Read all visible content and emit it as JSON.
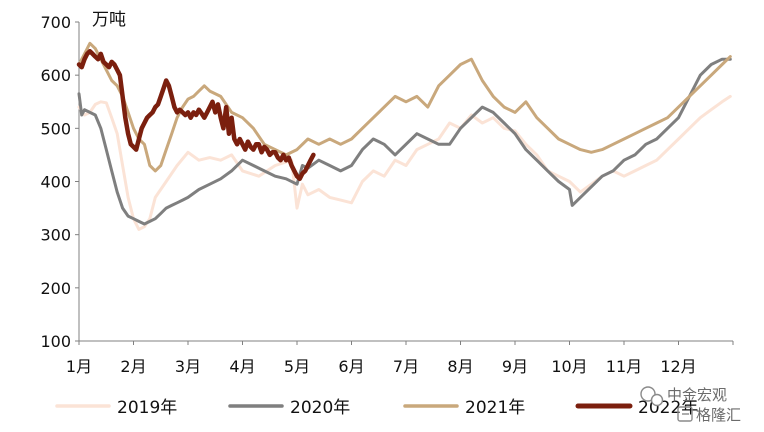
{
  "chart_data": {
    "type": "line",
    "ylabel": "万吨",
    "ylim": [
      100,
      700
    ],
    "yticks": [
      100,
      200,
      300,
      400,
      500,
      600,
      700
    ],
    "xlim": [
      1,
      13
    ],
    "months": [
      "1月",
      "2月",
      "3月",
      "4月",
      "5月",
      "6月",
      "7月",
      "8月",
      "9月",
      "10月",
      "11月",
      "12月"
    ],
    "grid": false,
    "legend_position": "bottom",
    "series": [
      {
        "name": "2019年",
        "color": "#fbe3d6",
        "x": [
          1.0,
          1.1,
          1.2,
          1.3,
          1.4,
          1.5,
          1.6,
          1.7,
          1.8,
          1.9,
          2.0,
          2.1,
          2.2,
          2.3,
          2.4,
          2.6,
          2.8,
          3.0,
          3.2,
          3.4,
          3.6,
          3.8,
          4.0,
          4.3,
          4.6,
          4.9,
          5.0,
          5.1,
          5.2,
          5.4,
          5.6,
          5.8,
          6.0,
          6.2,
          6.4,
          6.6,
          6.8,
          7.0,
          7.2,
          7.4,
          7.6,
          7.8,
          8.0,
          8.2,
          8.4,
          8.6,
          8.8,
          9.0,
          9.2,
          9.4,
          9.6,
          9.8,
          10.0,
          10.2,
          10.4,
          10.6,
          10.8,
          11.0,
          11.2,
          11.4,
          11.6,
          11.8,
          12.0,
          12.2,
          12.4,
          12.6,
          12.8,
          12.95
        ],
        "values": [
          540,
          525,
          530,
          545,
          550,
          548,
          520,
          490,
          430,
          370,
          330,
          310,
          315,
          330,
          370,
          400,
          430,
          455,
          440,
          445,
          440,
          450,
          420,
          410,
          430,
          440,
          350,
          395,
          375,
          385,
          370,
          365,
          360,
          400,
          420,
          410,
          440,
          430,
          460,
          470,
          480,
          510,
          500,
          525,
          510,
          520,
          500,
          495,
          470,
          450,
          420,
          410,
          400,
          380,
          395,
          410,
          420,
          410,
          420,
          430,
          440,
          460,
          480,
          500,
          520,
          535,
          550,
          560
        ]
      },
      {
        "name": "2020年",
        "color": "#7f7f7f",
        "x": [
          1.0,
          1.05,
          1.1,
          1.2,
          1.3,
          1.4,
          1.5,
          1.6,
          1.7,
          1.8,
          1.9,
          2.0,
          2.1,
          2.2,
          2.3,
          2.4,
          2.5,
          2.6,
          2.7,
          2.8,
          2.9,
          3.0,
          3.2,
          3.4,
          3.6,
          3.8,
          4.0,
          4.2,
          4.4,
          4.6,
          4.8,
          5.0,
          5.1,
          5.2,
          5.4,
          5.6,
          5.8,
          6.0,
          6.2,
          6.4,
          6.6,
          6.8,
          7.0,
          7.2,
          7.4,
          7.6,
          7.8,
          8.0,
          8.2,
          8.4,
          8.6,
          8.8,
          9.0,
          9.2,
          9.4,
          9.6,
          9.8,
          10.0,
          10.05,
          10.2,
          10.4,
          10.6,
          10.8,
          11.0,
          11.2,
          11.4,
          11.6,
          11.8,
          12.0,
          12.2,
          12.4,
          12.6,
          12.8,
          12.95
        ],
        "values": [
          565,
          525,
          535,
          530,
          525,
          500,
          460,
          420,
          380,
          350,
          335,
          330,
          325,
          320,
          325,
          330,
          340,
          350,
          355,
          360,
          365,
          370,
          385,
          395,
          405,
          420,
          440,
          430,
          420,
          410,
          405,
          395,
          430,
          425,
          440,
          430,
          420,
          430,
          460,
          480,
          470,
          450,
          470,
          490,
          480,
          470,
          470,
          500,
          520,
          540,
          530,
          510,
          490,
          460,
          440,
          420,
          400,
          385,
          355,
          370,
          390,
          410,
          420,
          440,
          450,
          470,
          480,
          500,
          520,
          560,
          600,
          620,
          630,
          630
        ]
      },
      {
        "name": "2021年",
        "color": "#c9a87c",
        "x": [
          1.0,
          1.1,
          1.2,
          1.3,
          1.4,
          1.5,
          1.6,
          1.7,
          1.8,
          1.9,
          2.0,
          2.1,
          2.2,
          2.3,
          2.4,
          2.5,
          2.6,
          2.7,
          2.8,
          2.9,
          3.0,
          3.1,
          3.2,
          3.3,
          3.4,
          3.6,
          3.8,
          4.0,
          4.2,
          4.4,
          4.6,
          4.8,
          5.0,
          5.2,
          5.4,
          5.6,
          5.8,
          6.0,
          6.2,
          6.4,
          6.6,
          6.8,
          7.0,
          7.2,
          7.4,
          7.6,
          7.8,
          8.0,
          8.2,
          8.4,
          8.6,
          8.8,
          9.0,
          9.2,
          9.4,
          9.6,
          9.8,
          10.0,
          10.2,
          10.4,
          10.6,
          10.8,
          11.0,
          11.2,
          11.4,
          11.6,
          11.8,
          12.0,
          12.2,
          12.4,
          12.6,
          12.8,
          12.95
        ],
        "values": [
          620,
          640,
          660,
          650,
          630,
          610,
          590,
          580,
          560,
          530,
          500,
          480,
          470,
          430,
          420,
          430,
          460,
          490,
          520,
          540,
          555,
          560,
          570,
          580,
          570,
          560,
          530,
          520,
          500,
          470,
          460,
          450,
          460,
          480,
          470,
          480,
          470,
          480,
          500,
          520,
          540,
          560,
          550,
          560,
          540,
          580,
          600,
          620,
          630,
          590,
          560,
          540,
          530,
          550,
          520,
          500,
          480,
          470,
          460,
          455,
          460,
          470,
          480,
          490,
          500,
          510,
          520,
          540,
          560,
          580,
          600,
          620,
          635
        ]
      },
      {
        "name": "2022年",
        "color": "#7b1f0e",
        "x": [
          1.0,
          1.05,
          1.1,
          1.15,
          1.2,
          1.25,
          1.3,
          1.35,
          1.4,
          1.45,
          1.5,
          1.55,
          1.6,
          1.65,
          1.7,
          1.75,
          1.8,
          1.85,
          1.9,
          1.95,
          2.0,
          2.05,
          2.1,
          2.15,
          2.2,
          2.25,
          2.3,
          2.35,
          2.4,
          2.45,
          2.5,
          2.55,
          2.6,
          2.65,
          2.7,
          2.75,
          2.8,
          2.85,
          2.9,
          2.95,
          3.0,
          3.05,
          3.1,
          3.15,
          3.2,
          3.25,
          3.3,
          3.35,
          3.4,
          3.45,
          3.5,
          3.55,
          3.6,
          3.65,
          3.7,
          3.75,
          3.8,
          3.85,
          3.9,
          3.95,
          4.0,
          4.05,
          4.1,
          4.15,
          4.2,
          4.25,
          4.3,
          4.35,
          4.4,
          4.45,
          4.5,
          4.55,
          4.6,
          4.65,
          4.7,
          4.75,
          4.8,
          4.85,
          4.9,
          4.95,
          5.0,
          5.05,
          5.1,
          5.15,
          5.2,
          5.25,
          5.3
        ],
        "values": [
          620,
          615,
          630,
          640,
          645,
          640,
          635,
          630,
          640,
          625,
          620,
          615,
          625,
          620,
          610,
          600,
          560,
          520,
          490,
          470,
          465,
          460,
          480,
          500,
          510,
          520,
          525,
          530,
          540,
          545,
          560,
          575,
          590,
          580,
          560,
          540,
          530,
          535,
          530,
          525,
          530,
          520,
          530,
          525,
          535,
          528,
          520,
          530,
          540,
          550,
          530,
          545,
          520,
          500,
          540,
          490,
          520,
          480,
          470,
          480,
          470,
          460,
          475,
          465,
          460,
          470,
          470,
          455,
          465,
          460,
          450,
          455,
          455,
          445,
          440,
          450,
          440,
          445,
          430,
          420,
          410,
          405,
          415,
          420,
          430,
          440,
          450
        ]
      }
    ]
  },
  "watermark": {
    "line1": "中金宏观",
    "line2": "格隆汇"
  }
}
